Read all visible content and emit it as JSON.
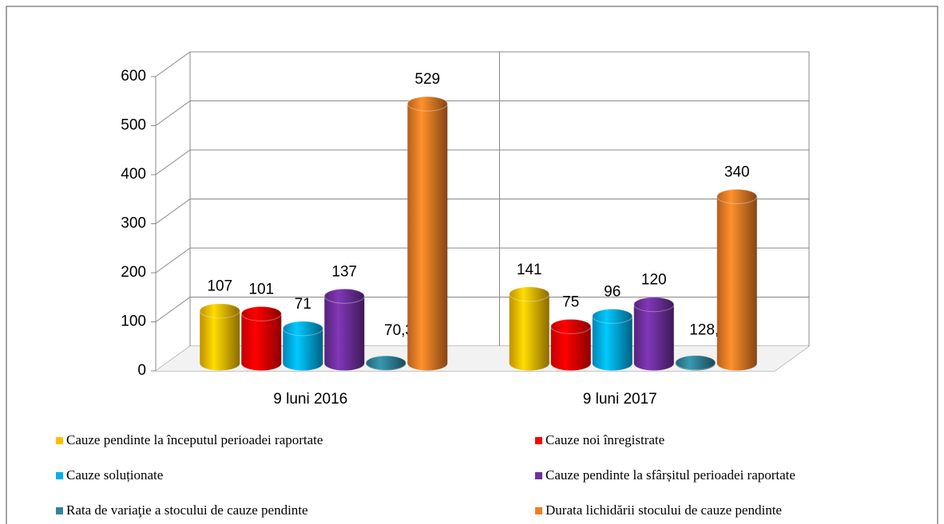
{
  "chart_data": {
    "type": "bar3d",
    "categories": [
      "9 luni 2016",
      "9 luni 2017"
    ],
    "series": [
      {
        "name": "Cauze pendinte la începutul perioadei raportate",
        "color": "#FFC000",
        "values": [
          107,
          141
        ]
      },
      {
        "name": "Cauze noi înregistrate",
        "color": "#FF0000",
        "values": [
          101,
          75
        ]
      },
      {
        "name": "Cauze soluționate",
        "color": "#00B0F0",
        "values": [
          71,
          96
        ]
      },
      {
        "name": "Cauze pendinte la sfârșitul perioadei raportate",
        "color": "#7030A0",
        "values": [
          137,
          120
        ]
      },
      {
        "name": "Rata de variaţie a stocului de cauze pendinte",
        "color": "#31849B",
        "values": [
          0.703,
          1.28
        ],
        "value_labels": [
          "70,30%",
          "128,00%"
        ]
      },
      {
        "name": "Durata lichidării stocului de cauze pendinte",
        "color": "#F07E26",
        "values": [
          529,
          340
        ]
      }
    ],
    "ylim": [
      0,
      600
    ],
    "yticks": [
      0,
      100,
      200,
      300,
      400,
      500,
      600
    ],
    "grid": true,
    "legend": "bottom"
  }
}
